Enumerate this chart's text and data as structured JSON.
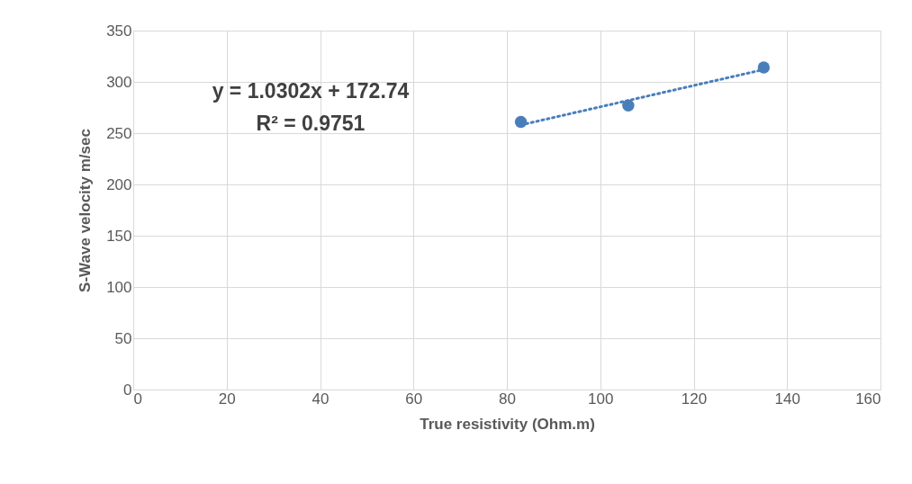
{
  "chart_data": {
    "type": "scatter",
    "xlabel": "True resistivity (Ohm.m)",
    "ylabel": "S-Wave velocity m/sec",
    "xlim": [
      0,
      160
    ],
    "xticks": [
      0,
      20,
      40,
      60,
      80,
      100,
      120,
      140,
      160
    ],
    "ylim": [
      0,
      350
    ],
    "yticks": [
      0,
      50,
      100,
      150,
      200,
      250,
      300,
      350
    ],
    "grid": true,
    "series": [
      {
        "color": "#4a7ebb",
        "marker": "circle",
        "x": [
          83,
          106,
          135
        ],
        "values": [
          261,
          277,
          314
        ]
      },
      {
        "type": "line",
        "color": "#4a7ebb",
        "marker": "none",
        "line_style": "dotted",
        "x": [
          83,
          135
        ],
        "values": [
          258,
          312
        ]
      }
    ],
    "annotations": [
      "y = 1.0302x + 172.74",
      "R² = 0.9751"
    ]
  }
}
